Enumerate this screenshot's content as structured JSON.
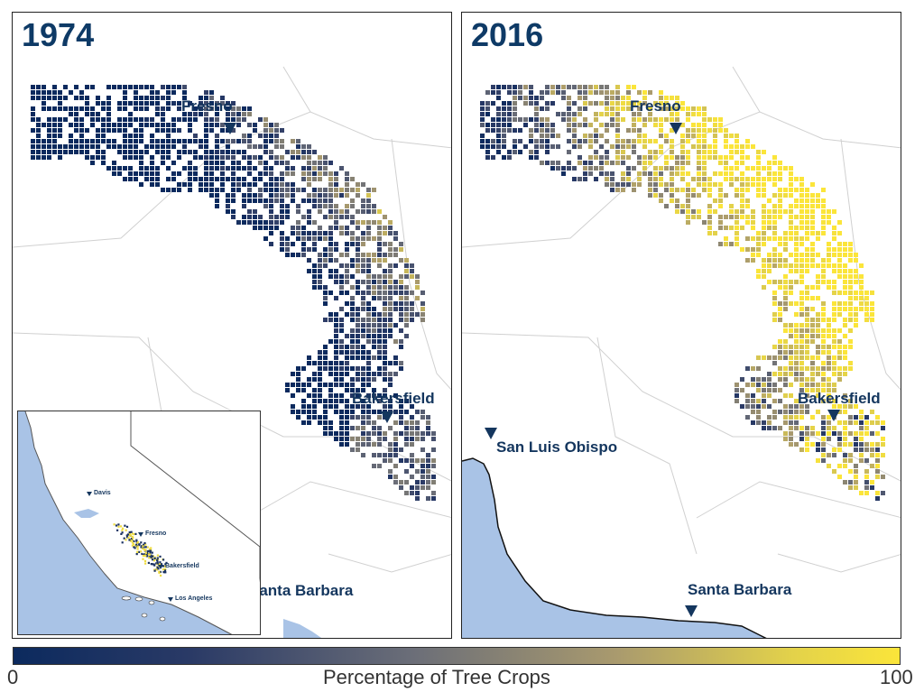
{
  "panels": [
    {
      "year": "1974",
      "cities": {
        "fresno": "Fresno",
        "bakersfield": "Bakersfield",
        "santa_barbara": "Santa Barbara"
      }
    },
    {
      "year": "2016",
      "cities": {
        "fresno": "Fresno",
        "bakersfield": "Bakersfield",
        "san_luis_obispo": "San Luis Obispo",
        "santa_barbara": "Santa Barbara"
      }
    }
  ],
  "inset": {
    "cities": {
      "davis": "Davis",
      "fresno": "Fresno",
      "bakersfield": "Bakersfield",
      "los_angeles": "Los Angeles"
    }
  },
  "legend": {
    "title": "Percentage of Tree Crops",
    "min_label": "0",
    "max_label": "100",
    "colors": [
      "#0c2a5e",
      "#2a3a66",
      "#6b6e78",
      "#a99a6e",
      "#e3d24a",
      "#fbe53a"
    ]
  },
  "map_colors": {
    "ocean": "#a9c3e6",
    "land": "#ffffff",
    "county_line": "#d0d0d0"
  }
}
